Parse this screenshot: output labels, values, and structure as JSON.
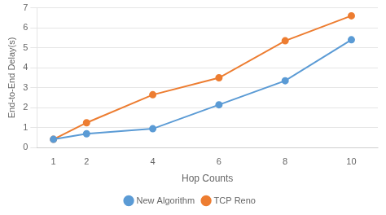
{
  "chart_data": {
    "type": "line",
    "x": [
      1,
      2,
      4,
      6,
      8,
      10
    ],
    "series": [
      {
        "name": "New Algorithm",
        "color": "#5b9bd5",
        "values": [
          0.42,
          0.7,
          0.95,
          2.15,
          3.35,
          5.4
        ]
      },
      {
        "name": "TCP Reno",
        "color": "#ed7d31",
        "values": [
          0.42,
          1.25,
          2.65,
          3.5,
          5.35,
          6.6
        ]
      }
    ],
    "xlabel": "Hop Counts",
    "ylabel": "End-to-End Delay(s)",
    "xlim": [
      0.5,
      10.8
    ],
    "ylim": [
      0,
      7
    ],
    "xticks": [
      1,
      2,
      4,
      6,
      8,
      10
    ],
    "yticks": [
      0,
      1,
      2,
      3,
      4,
      5,
      6,
      7
    ],
    "grid": true,
    "legend": "bottom",
    "marker": "circle"
  }
}
